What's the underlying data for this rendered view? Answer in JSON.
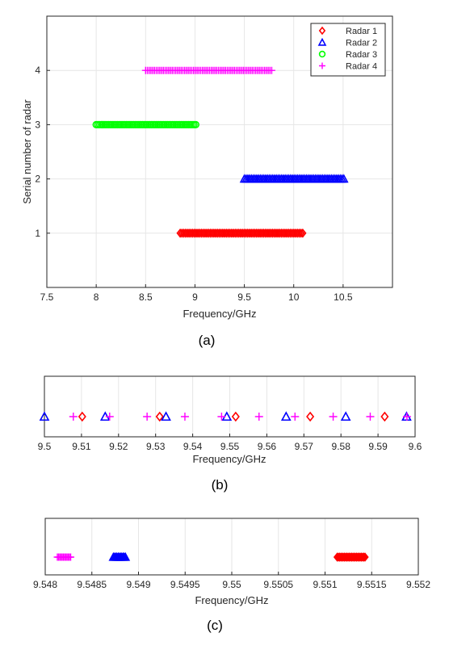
{
  "colors": {
    "radar1": "#ff0000",
    "radar2": "#0000ff",
    "radar3": "#00ff00",
    "radar4": "#ff00ff",
    "axis": "#262626",
    "grid": "#e6e6e6"
  },
  "chart_data": [
    {
      "type": "scatter",
      "caption": "(a)",
      "xlabel": "Frequency/GHz",
      "ylabel": "Serial number of radar",
      "xlim": [
        7.5,
        11
      ],
      "ylim": [
        0,
        5
      ],
      "xticks": [
        7.5,
        8,
        8.5,
        9,
        9.5,
        10,
        10.5
      ],
      "xtick_labels": [
        "7.5",
        "8",
        "8.5",
        "9",
        "9.5",
        "10",
        "10.5"
      ],
      "yticks": [
        1,
        2,
        3,
        4
      ],
      "ytick_labels": [
        "1",
        "2",
        "3",
        "4"
      ],
      "grid": true,
      "legend_position": "top-right",
      "series": [
        {
          "name": "Radar 1",
          "marker": "diamond",
          "y": 1,
          "x_start": 8.85,
          "x_end": 10.1
        },
        {
          "name": "Radar 2",
          "marker": "triangle",
          "y": 2,
          "x_start": 9.5,
          "x_end": 10.52
        },
        {
          "name": "Radar 3",
          "marker": "circle",
          "y": 3,
          "x_start": 8.0,
          "x_end": 9.02
        },
        {
          "name": "Radar 4",
          "marker": "plus",
          "y": 4,
          "x_start": 8.5,
          "x_end": 9.78
        }
      ]
    },
    {
      "type": "scatter",
      "caption": "(b)",
      "xlabel": "Frequency/GHz",
      "xlim": [
        9.5,
        9.6
      ],
      "xticks": [
        9.5,
        9.51,
        9.52,
        9.53,
        9.54,
        9.55,
        9.56,
        9.57,
        9.58,
        9.59,
        9.6
      ],
      "xtick_labels": [
        "9.5",
        "9.51",
        "9.52",
        "9.53",
        "9.54",
        "9.55",
        "9.56",
        "9.57",
        "9.58",
        "9.59",
        "9.6"
      ],
      "grid": true,
      "series": [
        {
          "series_ref": "Radar 1",
          "marker": "diamond",
          "x": [
            9.5102,
            9.5311,
            9.5516,
            9.5717,
            9.5918
          ]
        },
        {
          "series_ref": "Radar 2",
          "marker": "triangle",
          "x": [
            9.5,
            9.5164,
            9.5328,
            9.5492,
            9.5652,
            9.5813,
            9.5977
          ]
        },
        {
          "series_ref": "Radar 4",
          "marker": "plus",
          "x": [
            9.5078,
            9.5176,
            9.5277,
            9.5379,
            9.5478,
            9.5579,
            9.5676,
            9.5779,
            9.5879,
            9.5978
          ]
        }
      ]
    },
    {
      "type": "scatter",
      "caption": "(c)",
      "xlabel": "Frequency/GHz",
      "xlim": [
        9.548,
        9.552
      ],
      "xticks": [
        9.548,
        9.5485,
        9.549,
        9.5495,
        9.55,
        9.5505,
        9.551,
        9.5515,
        9.552
      ],
      "xtick_labels": [
        "9.548",
        "9.5485",
        "9.549",
        "9.5495",
        "9.55",
        "9.5505",
        "9.551",
        "9.5515",
        "9.552"
      ],
      "grid": true,
      "series": [
        {
          "series_ref": "Radar 4",
          "marker": "plus",
          "x_start": 9.54813,
          "x_end": 9.54828
        },
        {
          "series_ref": "Radar 2",
          "marker": "triangle",
          "x_start": 9.54873,
          "x_end": 9.54887
        },
        {
          "series_ref": "Radar 1",
          "marker": "diamond",
          "x_start": 9.55113,
          "x_end": 9.55143
        }
      ]
    }
  ]
}
